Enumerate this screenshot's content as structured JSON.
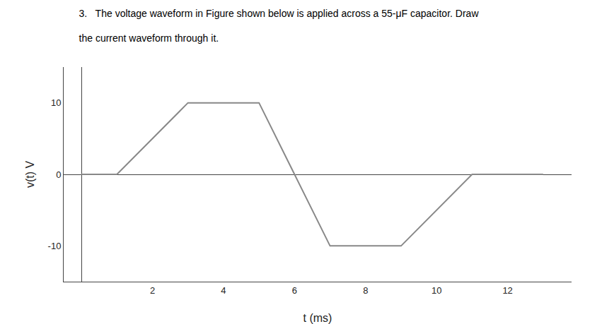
{
  "chart_data": {
    "type": "line",
    "title": "3.   The voltage waveform in Figure shown below is applied across a 55-μF capacitor. Draw",
    "subtitle": "the current waveform through it.",
    "x": [
      0,
      1,
      3,
      5,
      6,
      7,
      9,
      11,
      13
    ],
    "values": [
      0,
      0,
      10,
      10,
      0,
      -10,
      -10,
      0,
      0
    ],
    "color": "#888888",
    "xlabel": "t (ms)",
    "ylabel": "v(t) V",
    "xlim": [
      -0.5,
      13.8
    ],
    "ylim": [
      -15,
      15
    ],
    "xticks": [
      2,
      4,
      6,
      8,
      10,
      12
    ],
    "yticks": [
      -10,
      0,
      10
    ],
    "grid": false
  }
}
